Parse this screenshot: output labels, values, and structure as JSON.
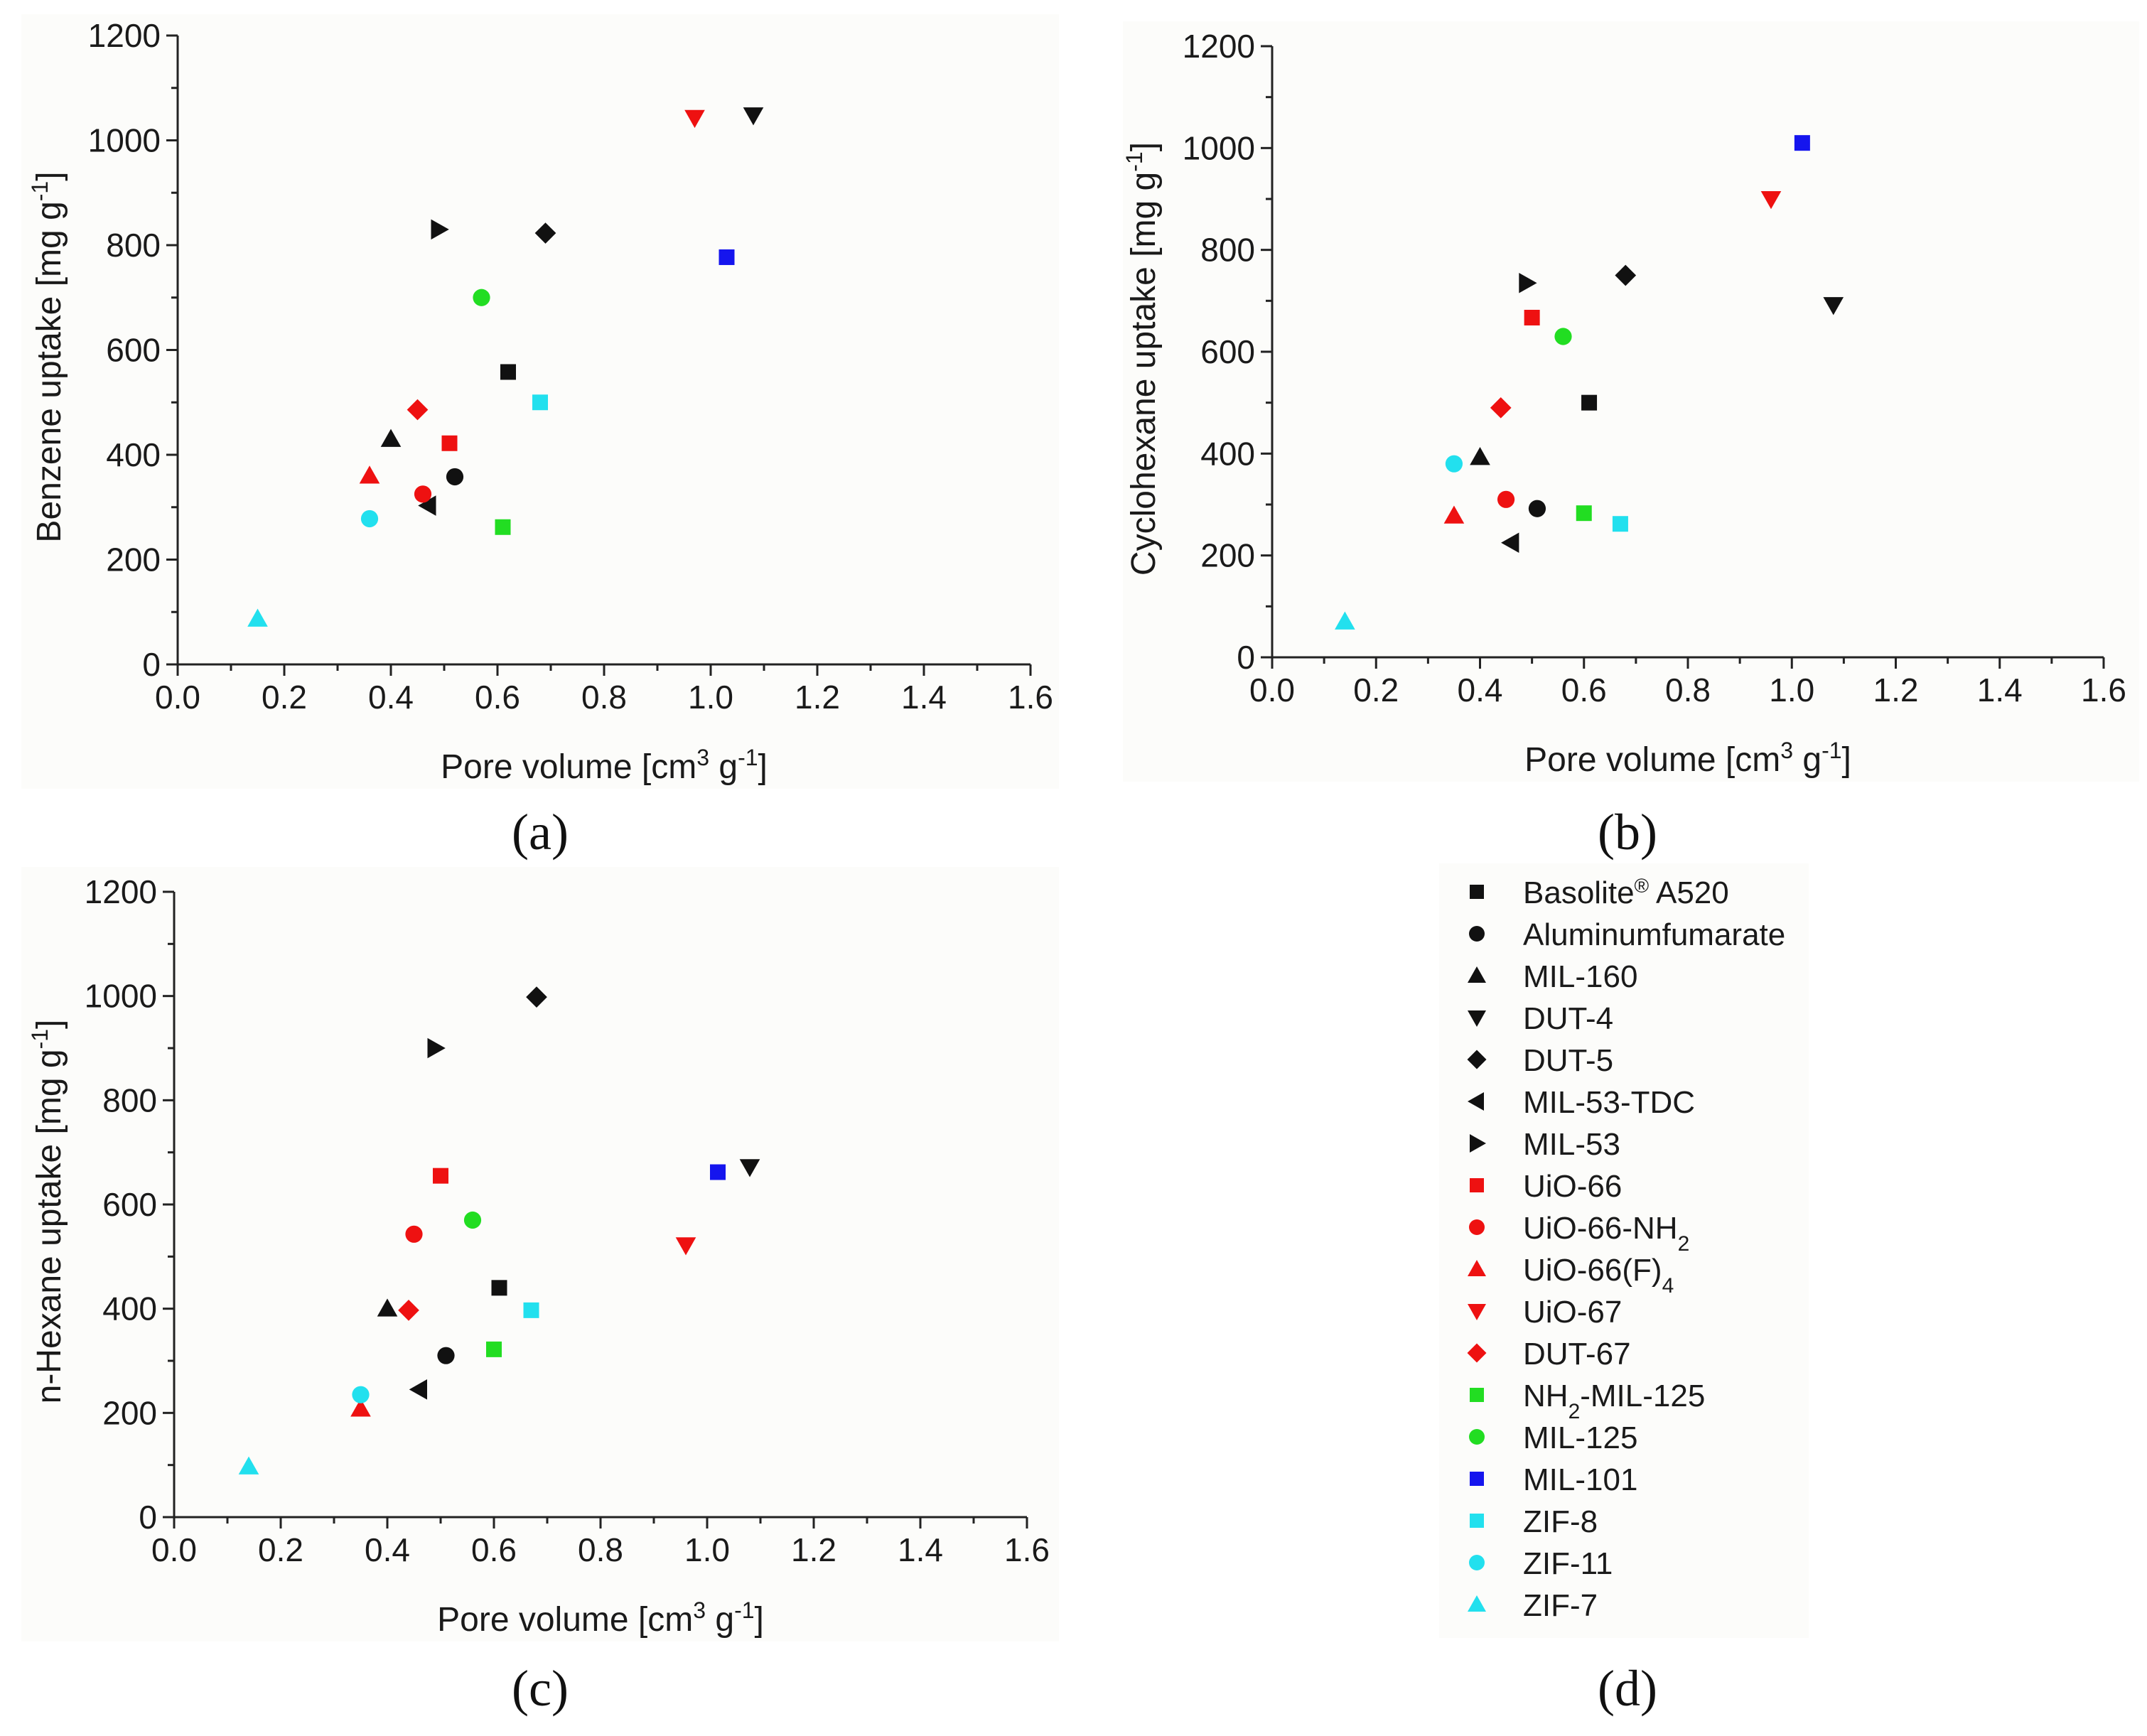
{
  "colors": {
    "black": "#111111",
    "red": "#ee1111",
    "green": "#22dd22",
    "blue": "#1515ee",
    "cyan": "#22e0ee",
    "panel_bg": "#fcfcfa"
  },
  "legend": [
    {
      "label": "Basolite",
      "sup": "®",
      "rest": " A520",
      "marker": "square",
      "color": "black"
    },
    {
      "label": "Aluminumfumarate",
      "marker": "circle",
      "color": "black"
    },
    {
      "label": "MIL-160",
      "marker": "triangle-up",
      "color": "black"
    },
    {
      "label": "DUT-4",
      "marker": "triangle-down",
      "color": "black"
    },
    {
      "label": "DUT-5",
      "marker": "diamond",
      "color": "black"
    },
    {
      "label": "MIL-53-TDC",
      "marker": "triangle-left",
      "color": "black"
    },
    {
      "label": "MIL-53",
      "marker": "triangle-right",
      "color": "black"
    },
    {
      "label": "UiO-66",
      "marker": "square",
      "color": "red"
    },
    {
      "label": "UiO-66-NH",
      "sub": "2",
      "marker": "circle",
      "color": "red"
    },
    {
      "label": "UiO-66(F)",
      "sub": "4",
      "marker": "triangle-up",
      "color": "red"
    },
    {
      "label": "UiO-67",
      "marker": "triangle-down",
      "color": "red"
    },
    {
      "label": "DUT-67",
      "marker": "diamond",
      "color": "red"
    },
    {
      "label": "NH",
      "sub": "2",
      "rest": "-MIL-125",
      "marker": "square",
      "color": "green"
    },
    {
      "label": "MIL-125",
      "marker": "circle",
      "color": "green"
    },
    {
      "label": "MIL-101",
      "marker": "square",
      "color": "blue"
    },
    {
      "label": "ZIF-8",
      "marker": "square",
      "color": "cyan"
    },
    {
      "label": "ZIF-11",
      "marker": "circle",
      "color": "cyan"
    },
    {
      "label": "ZIF-7",
      "marker": "triangle-up",
      "color": "cyan"
    }
  ],
  "chart_data": [
    {
      "type": "scatter",
      "panel": "(a)",
      "xlabel": "Pore volume [cm³ g⁻¹]",
      "ylabel": "Benzene uptake [mg g⁻¹]",
      "xlim": [
        0.0,
        1.6
      ],
      "ylim": [
        0,
        1200
      ],
      "xticks": [
        "0.0",
        "0.2",
        "0.4",
        "0.6",
        "0.8",
        "1.0",
        "1.2",
        "1.4",
        "1.6"
      ],
      "yticks": [
        "0",
        "200",
        "400",
        "600",
        "800",
        "1000",
        "1200"
      ],
      "points": [
        {
          "name": "Basolite A520",
          "x": 0.62,
          "y": 558
        },
        {
          "name": "Aluminumfumarate",
          "x": 0.52,
          "y": 358
        },
        {
          "name": "MIL-160",
          "x": 0.4,
          "y": 430
        },
        {
          "name": "DUT-4",
          "x": 1.08,
          "y": 1048
        },
        {
          "name": "DUT-5",
          "x": 0.69,
          "y": 823
        },
        {
          "name": "MIL-53-TDC",
          "x": 0.47,
          "y": 303
        },
        {
          "name": "MIL-53",
          "x": 0.49,
          "y": 830
        },
        {
          "name": "UiO-66",
          "x": 0.51,
          "y": 422
        },
        {
          "name": "UiO-66-NH2",
          "x": 0.46,
          "y": 325
        },
        {
          "name": "UiO-66(F)4",
          "x": 0.36,
          "y": 360
        },
        {
          "name": "UiO-67",
          "x": 0.97,
          "y": 1043
        },
        {
          "name": "DUT-67",
          "x": 0.45,
          "y": 486
        },
        {
          "name": "NH2-MIL-125",
          "x": 0.61,
          "y": 262
        },
        {
          "name": "MIL-125",
          "x": 0.57,
          "y": 700
        },
        {
          "name": "MIL-101",
          "x": 1.03,
          "y": 777
        },
        {
          "name": "ZIF-8",
          "x": 0.68,
          "y": 500
        },
        {
          "name": "ZIF-11",
          "x": 0.36,
          "y": 278
        },
        {
          "name": "ZIF-7",
          "x": 0.15,
          "y": 87
        }
      ]
    },
    {
      "type": "scatter",
      "panel": "(b)",
      "xlabel": "Pore volume [cm³ g⁻¹]",
      "ylabel": "Cyclohexane uptake [mg g⁻¹]",
      "xlim": [
        0.0,
        1.6
      ],
      "ylim": [
        0,
        1200
      ],
      "xticks": [
        "0.0",
        "0.2",
        "0.4",
        "0.6",
        "0.8",
        "1.0",
        "1.2",
        "1.4",
        "1.6"
      ],
      "yticks": [
        "0",
        "200",
        "400",
        "600",
        "800",
        "1000",
        "1200"
      ],
      "points": [
        {
          "name": "Basolite A520",
          "x": 0.61,
          "y": 500
        },
        {
          "name": "Aluminumfumarate",
          "x": 0.51,
          "y": 292
        },
        {
          "name": "MIL-160",
          "x": 0.4,
          "y": 393
        },
        {
          "name": "DUT-4",
          "x": 1.08,
          "y": 692
        },
        {
          "name": "DUT-5",
          "x": 0.68,
          "y": 750
        },
        {
          "name": "MIL-53-TDC",
          "x": 0.46,
          "y": 225
        },
        {
          "name": "MIL-53",
          "x": 0.49,
          "y": 735
        },
        {
          "name": "UiO-66",
          "x": 0.5,
          "y": 667
        },
        {
          "name": "UiO-66-NH2",
          "x": 0.45,
          "y": 310
        },
        {
          "name": "UiO-66(F)4",
          "x": 0.35,
          "y": 278
        },
        {
          "name": "UiO-67",
          "x": 0.96,
          "y": 900
        },
        {
          "name": "DUT-67",
          "x": 0.44,
          "y": 490
        },
        {
          "name": "NH2-MIL-125",
          "x": 0.6,
          "y": 283
        },
        {
          "name": "MIL-125",
          "x": 0.56,
          "y": 630
        },
        {
          "name": "MIL-101",
          "x": 1.02,
          "y": 1010
        },
        {
          "name": "ZIF-8",
          "x": 0.67,
          "y": 262
        },
        {
          "name": "ZIF-11",
          "x": 0.35,
          "y": 380
        },
        {
          "name": "ZIF-7",
          "x": 0.14,
          "y": 70
        }
      ]
    },
    {
      "type": "scatter",
      "panel": "(c)",
      "xlabel": "Pore volume [cm³ g⁻¹]",
      "ylabel": "n-Hexane uptake [mg g⁻¹]",
      "xlim": [
        0.0,
        1.6
      ],
      "ylim": [
        0,
        1200
      ],
      "xticks": [
        "0.0",
        "0.2",
        "0.4",
        "0.6",
        "0.8",
        "1.0",
        "1.2",
        "1.4",
        "1.6"
      ],
      "yticks": [
        "0",
        "200",
        "400",
        "600",
        "800",
        "1000",
        "1200"
      ],
      "points": [
        {
          "name": "Basolite A520",
          "x": 0.61,
          "y": 440
        },
        {
          "name": "Aluminumfumarate",
          "x": 0.51,
          "y": 310
        },
        {
          "name": "MIL-160",
          "x": 0.4,
          "y": 400
        },
        {
          "name": "DUT-4",
          "x": 1.08,
          "y": 672
        },
        {
          "name": "DUT-5",
          "x": 0.68,
          "y": 998
        },
        {
          "name": "MIL-53-TDC",
          "x": 0.46,
          "y": 245
        },
        {
          "name": "MIL-53",
          "x": 0.49,
          "y": 900
        },
        {
          "name": "UiO-66",
          "x": 0.5,
          "y": 655
        },
        {
          "name": "UiO-66-NH2",
          "x": 0.45,
          "y": 543
        },
        {
          "name": "UiO-66(F)4",
          "x": 0.35,
          "y": 208
        },
        {
          "name": "UiO-67",
          "x": 0.96,
          "y": 522
        },
        {
          "name": "DUT-67",
          "x": 0.44,
          "y": 397
        },
        {
          "name": "NH2-MIL-125",
          "x": 0.6,
          "y": 322
        },
        {
          "name": "MIL-125",
          "x": 0.56,
          "y": 570
        },
        {
          "name": "MIL-101",
          "x": 1.02,
          "y": 662
        },
        {
          "name": "ZIF-8",
          "x": 0.67,
          "y": 397
        },
        {
          "name": "ZIF-11",
          "x": 0.35,
          "y": 235
        },
        {
          "name": "ZIF-7",
          "x": 0.14,
          "y": 97
        }
      ]
    }
  ],
  "panel_d_label": "(d)"
}
